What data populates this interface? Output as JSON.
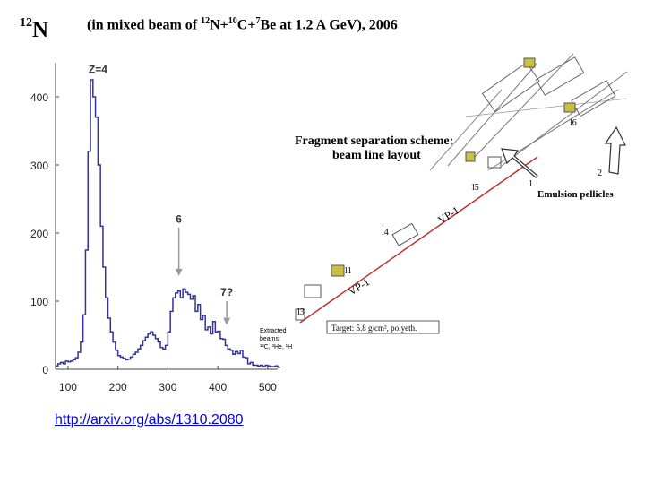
{
  "slide": {
    "title": {
      "mass": "12",
      "symbol": "N"
    },
    "subtitle": {
      "prefix": "(in mixed beam of ",
      "n1_mass": "12",
      "n1_sym": "N+",
      "n2_mass": "10",
      "n2_sym": "C+",
      "n3_mass": "7",
      "n3_sym": "Be at 1.2 A GeV), 2006"
    },
    "link": "http://arxiv.org/abs/1310.2080"
  },
  "chart_data": {
    "type": "line",
    "xlim": [
      75,
      520
    ],
    "ylim": [
      0,
      450
    ],
    "xticks": [
      100,
      200,
      300,
      400,
      500
    ],
    "yticks": [
      0,
      100,
      200,
      300,
      400
    ],
    "grid": false,
    "color": "#33339a",
    "annotations": [
      {
        "label": "Z=4",
        "x": 160,
        "y": 435
      },
      {
        "label": "6",
        "x": 322,
        "y": 215
      },
      {
        "label": "7?",
        "x": 418,
        "y": 108
      }
    ],
    "arrows": [
      {
        "x": 322,
        "y_from": 208,
        "y_to": 137
      },
      {
        "x": 418,
        "y_from": 100,
        "y_to": 65
      }
    ],
    "series": [
      {
        "x": [
          75,
          80,
          85,
          90,
          95,
          100,
          105,
          110,
          115,
          120,
          125,
          130,
          135,
          140,
          145,
          150,
          155,
          160,
          165,
          170,
          175,
          180,
          185,
          190,
          195,
          200,
          205,
          210,
          215,
          220,
          225,
          230,
          235,
          240,
          245,
          250,
          255,
          260,
          265,
          270,
          275,
          280,
          285,
          290,
          295,
          300,
          305,
          310,
          315,
          320,
          325,
          330,
          335,
          340,
          345,
          350,
          355,
          360,
          365,
          370,
          375,
          380,
          385,
          390,
          395,
          400,
          405,
          410,
          415,
          420,
          425,
          430,
          435,
          440,
          445,
          450,
          455,
          460,
          465,
          470,
          475,
          480,
          485,
          490,
          495,
          500,
          505,
          510,
          515,
          520
        ],
        "y": [
          5,
          8,
          10,
          8,
          12,
          11,
          12,
          14,
          17,
          25,
          40,
          80,
          175,
          320,
          425,
          400,
          370,
          300,
          210,
          150,
          105,
          75,
          55,
          40,
          28,
          20,
          18,
          16,
          14,
          15,
          18,
          22,
          25,
          30,
          35,
          42,
          47,
          52,
          55,
          50,
          45,
          40,
          32,
          30,
          35,
          55,
          85,
          105,
          112,
          115,
          105,
          118,
          113,
          110,
          103,
          108,
          85,
          95,
          73,
          79,
          58,
          62,
          52,
          70,
          55,
          56,
          45,
          44,
          35,
          30,
          28,
          22,
          26,
          23,
          28,
          18,
          17,
          8,
          10,
          6,
          6,
          5,
          6,
          4,
          6,
          5,
          4,
          4,
          5,
          3
        ]
      }
    ]
  },
  "diagram": {
    "title_line1": "Fragment separation scheme:",
    "title_line2": "beam line layout",
    "emulsion_label": "Emulsion pellicles",
    "target_label": "Target: 5.8 g/cm², polyeth.",
    "extracted_label": [
      "Extracted",
      "beams:",
      "¹²C, ³He, ¹H"
    ],
    "vp_labels": [
      "VP-1",
      "VP-1"
    ],
    "lens_labels": [
      "l1",
      "l3",
      "l4",
      "l5",
      "l6"
    ],
    "numbers": [
      "1",
      "2"
    ]
  }
}
